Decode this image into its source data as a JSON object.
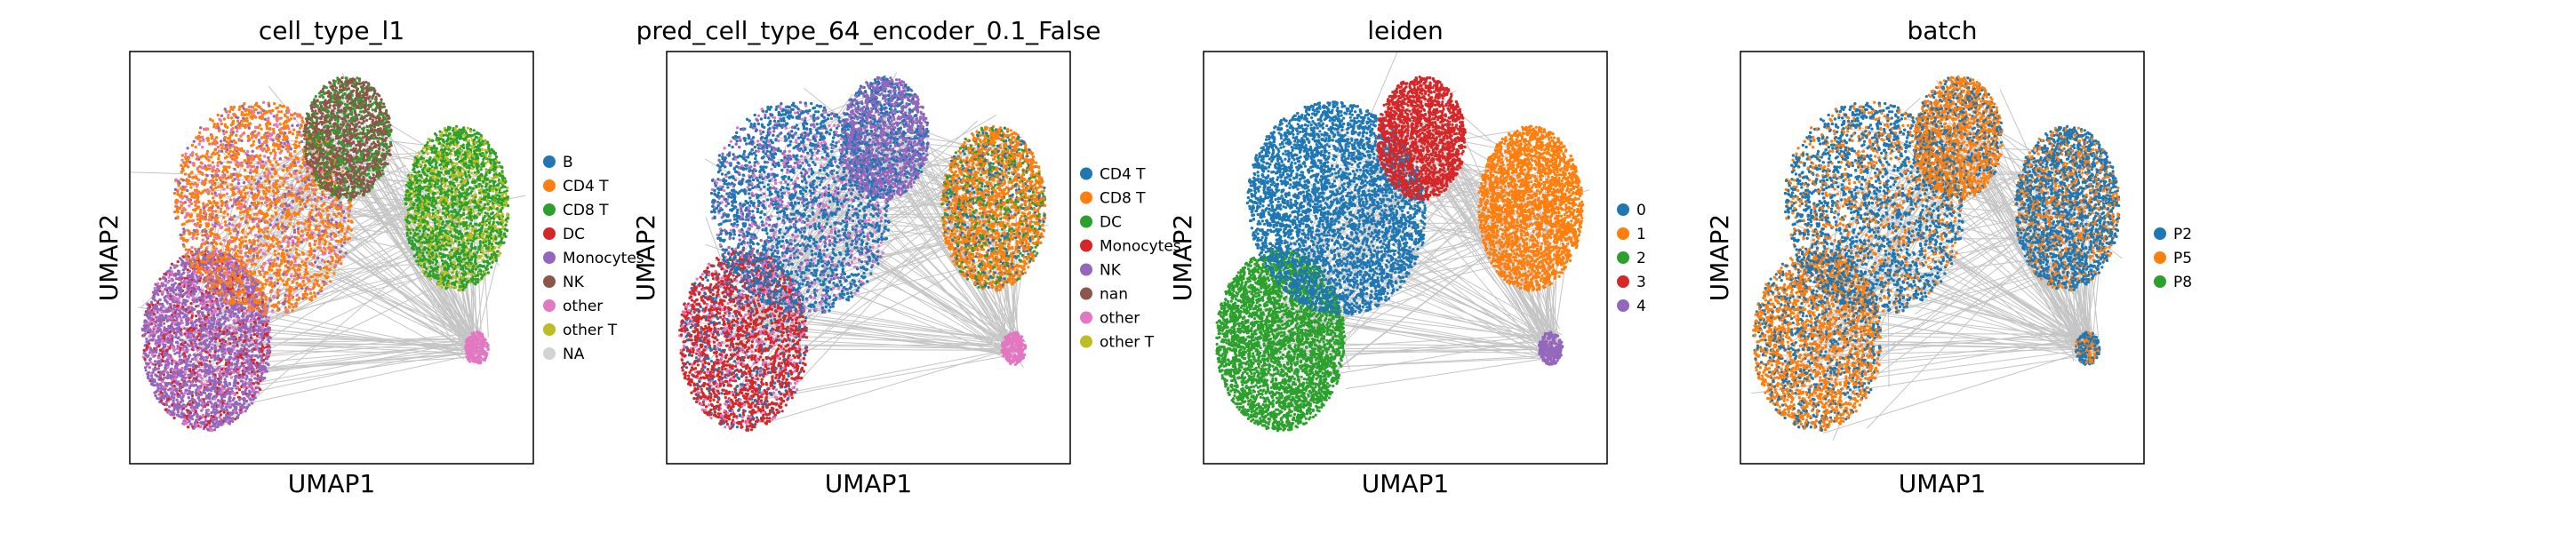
{
  "chart_data": [
    {
      "type": "scatter",
      "title": "cell_type_l1",
      "xlabel": "UMAP1",
      "ylabel": "UMAP2",
      "legend_position": "right",
      "legend": [
        {
          "label": "B",
          "color": "#1f77b4"
        },
        {
          "label": "CD4 T",
          "color": "#ff7f0e"
        },
        {
          "label": "CD8 T",
          "color": "#2ca02c"
        },
        {
          "label": "DC",
          "color": "#d62728"
        },
        {
          "label": "Monocytes",
          "color": "#9467bd"
        },
        {
          "label": "NK",
          "color": "#8c564b"
        },
        {
          "label": "other",
          "color": "#e377c2"
        },
        {
          "label": "other T",
          "color": "#bcbd22"
        },
        {
          "label": "NA",
          "color": "#d3d3d3"
        }
      ],
      "clusters": [
        {
          "name": "left-lower",
          "dominant": [
            "Monocytes"
          ],
          "mix": [
            "DC",
            "other"
          ]
        },
        {
          "name": "upper-left",
          "dominant": [
            "CD4 T"
          ],
          "mix": [
            "Monocytes",
            "other"
          ]
        },
        {
          "name": "top-center",
          "dominant": [
            "NK"
          ],
          "mix": [
            "CD8 T"
          ]
        },
        {
          "name": "right",
          "dominant": [
            "CD8 T"
          ],
          "mix": [
            "other T"
          ]
        },
        {
          "name": "small-right",
          "dominant": [
            "other"
          ],
          "mix": []
        }
      ]
    },
    {
      "type": "scatter",
      "title": "pred_cell_type_64_encoder_0.1_False",
      "xlabel": "UMAP1",
      "ylabel": "UMAP2",
      "legend_position": "right",
      "legend": [
        {
          "label": "CD4 T",
          "color": "#1f77b4"
        },
        {
          "label": "CD8 T",
          "color": "#ff7f0e"
        },
        {
          "label": "DC",
          "color": "#2ca02c"
        },
        {
          "label": "Monocytes",
          "color": "#d62728"
        },
        {
          "label": "NK",
          "color": "#9467bd"
        },
        {
          "label": "nan",
          "color": "#8c564b"
        },
        {
          "label": "other",
          "color": "#e377c2"
        },
        {
          "label": "other T",
          "color": "#bcbd22"
        }
      ],
      "clusters": [
        {
          "name": "left-lower",
          "dominant": [
            "Monocytes"
          ],
          "mix": [
            "other",
            "CD4 T"
          ]
        },
        {
          "name": "upper-left",
          "dominant": [
            "CD4 T"
          ],
          "mix": [
            "other",
            "NK"
          ]
        },
        {
          "name": "top-center",
          "dominant": [
            "NK"
          ],
          "mix": [
            "CD4 T"
          ]
        },
        {
          "name": "right",
          "dominant": [
            "CD8 T"
          ],
          "mix": [
            "DC",
            "CD4 T"
          ]
        },
        {
          "name": "small-right",
          "dominant": [
            "other"
          ],
          "mix": []
        }
      ]
    },
    {
      "type": "scatter",
      "title": "leiden",
      "xlabel": "UMAP1",
      "ylabel": "UMAP2",
      "legend_position": "right",
      "legend": [
        {
          "label": "0",
          "color": "#1f77b4"
        },
        {
          "label": "1",
          "color": "#ff7f0e"
        },
        {
          "label": "2",
          "color": "#2ca02c"
        },
        {
          "label": "3",
          "color": "#d62728"
        },
        {
          "label": "4",
          "color": "#9467bd"
        }
      ],
      "clusters": [
        {
          "name": "left-lower",
          "dominant": [
            "2"
          ],
          "mix": []
        },
        {
          "name": "upper-left",
          "dominant": [
            "0"
          ],
          "mix": []
        },
        {
          "name": "top-center",
          "dominant": [
            "3"
          ],
          "mix": []
        },
        {
          "name": "right",
          "dominant": [
            "1"
          ],
          "mix": []
        },
        {
          "name": "small-right",
          "dominant": [
            "4"
          ],
          "mix": []
        }
      ]
    },
    {
      "type": "scatter",
      "title": "batch",
      "xlabel": "UMAP1",
      "ylabel": "UMAP2",
      "legend_position": "right",
      "legend": [
        {
          "label": "P2",
          "color": "#1f77b4"
        },
        {
          "label": "P5",
          "color": "#ff7f0e"
        },
        {
          "label": "P8",
          "color": "#2ca02c"
        }
      ],
      "clusters": [
        {
          "name": "left-lower",
          "dominant": [
            "P5"
          ],
          "mix": [
            "P2"
          ]
        },
        {
          "name": "upper-left",
          "dominant": [
            "P2"
          ],
          "mix": [
            "P5"
          ]
        },
        {
          "name": "top-center",
          "dominant": [
            "P5"
          ],
          "mix": [
            "P2"
          ]
        },
        {
          "name": "right",
          "dominant": [
            "P2"
          ],
          "mix": [
            "P5"
          ]
        },
        {
          "name": "small-right",
          "dominant": [
            "P2"
          ],
          "mix": [
            "P5"
          ]
        }
      ]
    }
  ]
}
